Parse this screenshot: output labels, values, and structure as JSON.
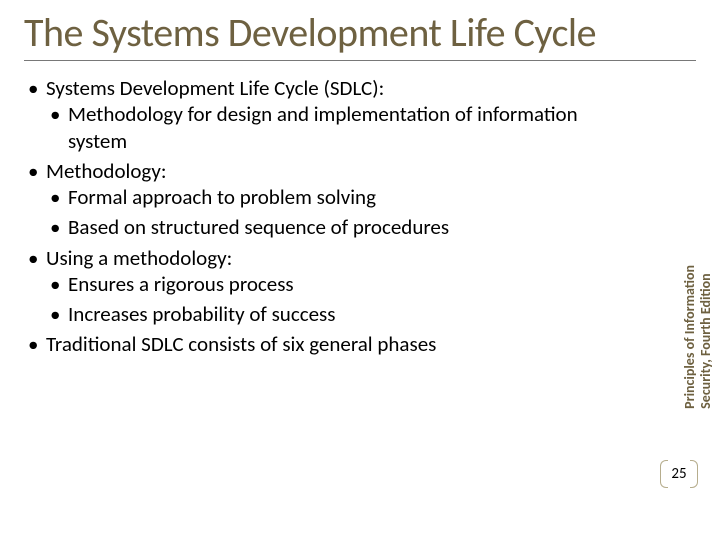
{
  "colors": {
    "title": "#6e6141",
    "body_text": "#000000",
    "rule": "#787878",
    "side_text": "#6e6141",
    "bracket": "#b6ad8d",
    "background": "#ffffff"
  },
  "typography": {
    "title_fontsize": 40,
    "body_fontsize": 21,
    "side_fontsize": 14,
    "pagenum_fontsize": 15,
    "font_family": "Calibri"
  },
  "title": "The Systems Development Life Cycle",
  "bullets": [
    {
      "text": "Systems Development Life Cycle (SDLC):",
      "children": [
        {
          "text": "Methodology for design and implementation of information system"
        }
      ]
    },
    {
      "text": "Methodology:",
      "children": [
        {
          "text": "Formal approach to problem solving"
        },
        {
          "text": "Based on structured sequence of procedures"
        }
      ]
    },
    {
      "text": "Using a methodology:",
      "children": [
        {
          "text": "Ensures a rigorous process"
        },
        {
          "text": "Increases probability of success"
        }
      ]
    },
    {
      "text": "Traditional SDLC consists of six general phases"
    }
  ],
  "side_label": {
    "line1": "Principles of Information",
    "line2": "Security, Fourth Edition"
  },
  "page_number": "25"
}
